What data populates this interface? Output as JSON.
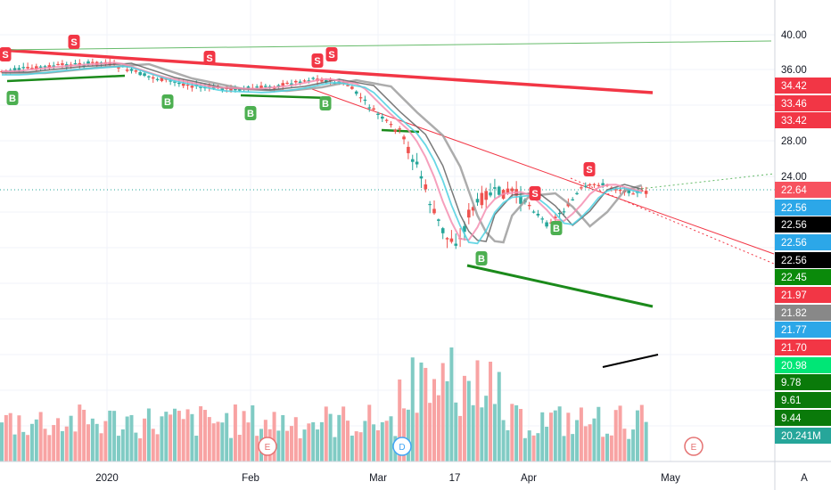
{
  "chart_data": {
    "type": "candlestick",
    "price_axis": {
      "ticks": [
        "40.00",
        "36.00",
        "28.00",
        "24.00"
      ],
      "scale": "log"
    },
    "volume_axis": {
      "labels": [
        "9.78",
        "9.61",
        "9.44"
      ]
    },
    "x_axis": {
      "labels": [
        "2020",
        "Feb",
        "Mar",
        "17",
        "Apr",
        "May"
      ]
    },
    "price_labels": [
      {
        "text": "34.42",
        "color": "#f23645"
      },
      {
        "text": "33.46",
        "color": "#f23645"
      },
      {
        "text": "33.42",
        "color": "#f23645"
      },
      {
        "text": "22.64",
        "color": "#f7525f"
      },
      {
        "text": "22.56",
        "color": "#2ca7e8"
      },
      {
        "text": "22.56",
        "color": "#000000"
      },
      {
        "text": "22.56",
        "color": "#2ca7e8"
      },
      {
        "text": "22.56",
        "color": "#000000"
      },
      {
        "text": "22.45",
        "color": "#0a8a0a"
      },
      {
        "text": "21.97",
        "color": "#f23645"
      },
      {
        "text": "21.82",
        "color": "#888888"
      },
      {
        "text": "21.77",
        "color": "#2ca7e8"
      },
      {
        "text": "21.70",
        "color": "#f23645"
      },
      {
        "text": "20.98",
        "color": "#00e676"
      },
      {
        "text": "9.78",
        "color": "#0a7a0a"
      },
      {
        "text": "9.61",
        "color": "#0a7a0a"
      },
      {
        "text": "9.44",
        "color": "#0a7a0a"
      },
      {
        "text": "20.241M",
        "color": "#26a69a"
      }
    ],
    "buy_signals": [
      "B",
      "B",
      "B",
      "B",
      "B",
      "B"
    ],
    "sell_signals": [
      "S",
      "S",
      "S",
      "S",
      "S",
      "S",
      "S"
    ],
    "event_markers": [
      "E",
      "D",
      "E"
    ],
    "auto_scale_button": "A",
    "colors": {
      "up": "#26a69a",
      "down": "#ef5350",
      "buy": "#4caf50",
      "sell": "#f23645"
    }
  }
}
